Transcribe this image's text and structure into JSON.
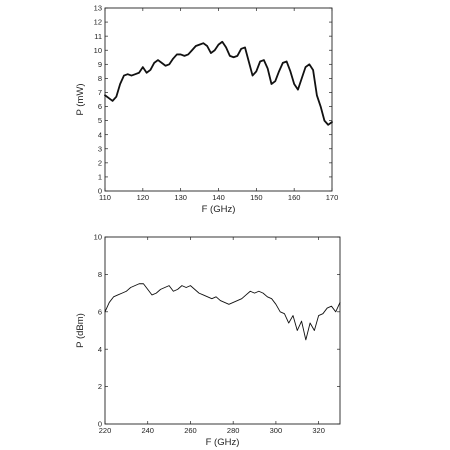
{
  "chart_data": [
    {
      "type": "line",
      "title": "",
      "xlabel": "F (GHz)",
      "ylabel": "P (mW)",
      "xlim": [
        110,
        170
      ],
      "ylim": [
        0,
        13
      ],
      "xticks": [
        110,
        120,
        130,
        140,
        150,
        160,
        170
      ],
      "yticks": [
        0,
        1,
        2,
        3,
        4,
        5,
        6,
        7,
        8,
        9,
        10,
        11,
        12,
        13
      ],
      "grid": false,
      "series": [
        {
          "x": [
            110,
            111,
            112,
            113,
            114,
            115,
            116,
            117,
            118,
            119,
            120,
            121,
            122,
            123,
            124,
            125,
            126,
            127,
            128,
            129,
            130,
            131,
            132,
            133,
            134,
            135,
            136,
            137,
            138,
            139,
            140,
            141,
            142,
            143,
            144,
            145,
            146,
            147,
            148,
            149,
            150,
            151,
            152,
            153,
            154,
            155,
            156,
            157,
            158,
            159,
            160,
            161,
            162,
            163,
            164,
            165,
            166,
            167,
            168,
            169,
            170
          ],
          "y": [
            6.8,
            6.6,
            6.4,
            6.7,
            7.6,
            8.2,
            8.3,
            8.2,
            8.3,
            8.4,
            8.8,
            8.4,
            8.6,
            9.1,
            9.3,
            9.1,
            8.9,
            9.0,
            9.4,
            9.7,
            9.7,
            9.6,
            9.7,
            10.0,
            10.3,
            10.4,
            10.5,
            10.3,
            9.8,
            10.0,
            10.4,
            10.6,
            10.2,
            9.6,
            9.5,
            9.6,
            10.1,
            10.2,
            9.2,
            8.2,
            8.5,
            9.2,
            9.3,
            8.7,
            7.6,
            7.8,
            8.5,
            9.1,
            9.2,
            8.5,
            7.6,
            7.2,
            8.0,
            8.8,
            9.0,
            8.6,
            6.8,
            6.0,
            5.0,
            4.7,
            4.9
          ]
        }
      ]
    },
    {
      "type": "line",
      "title": "",
      "xlabel": "F (GHz)",
      "ylabel": "P (dBm)",
      "xlim": [
        220,
        330
      ],
      "ylim": [
        0,
        10
      ],
      "xticks": [
        220,
        240,
        260,
        280,
        300,
        320
      ],
      "yticks": [
        0,
        2,
        4,
        6,
        8,
        10
      ],
      "grid": false,
      "series": [
        {
          "x": [
            220,
            222,
            224,
            226,
            228,
            230,
            232,
            234,
            236,
            238,
            240,
            242,
            244,
            246,
            248,
            250,
            252,
            254,
            256,
            258,
            260,
            262,
            264,
            266,
            268,
            270,
            272,
            274,
            276,
            278,
            280,
            282,
            284,
            286,
            288,
            290,
            292,
            294,
            296,
            298,
            300,
            302,
            304,
            306,
            308,
            310,
            312,
            314,
            316,
            318,
            320,
            322,
            324,
            326,
            328,
            330
          ],
          "y": [
            6.0,
            6.5,
            6.8,
            6.9,
            7.0,
            7.1,
            7.3,
            7.4,
            7.5,
            7.5,
            7.2,
            6.9,
            7.0,
            7.2,
            7.3,
            7.4,
            7.1,
            7.2,
            7.4,
            7.3,
            7.4,
            7.2,
            7.0,
            6.9,
            6.8,
            6.7,
            6.8,
            6.6,
            6.5,
            6.4,
            6.5,
            6.6,
            6.7,
            6.9,
            7.1,
            7.0,
            7.1,
            7.0,
            6.8,
            6.7,
            6.4,
            6.0,
            5.9,
            5.4,
            5.8,
            5.0,
            5.5,
            4.5,
            5.4,
            5.0,
            5.8,
            5.9,
            6.2,
            6.3,
            6.0,
            6.5
          ]
        }
      ]
    }
  ]
}
